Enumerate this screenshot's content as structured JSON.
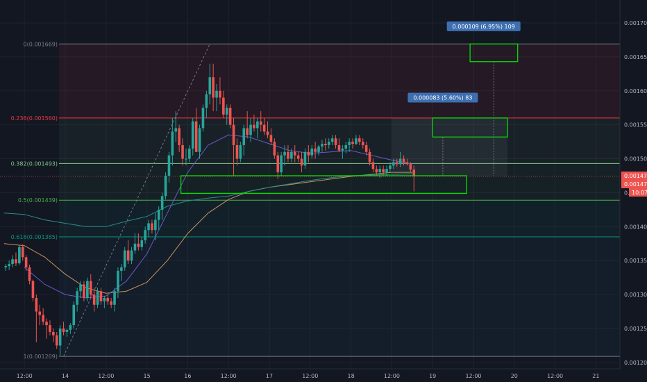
{
  "colors": {
    "background": "#131722",
    "grid": "#1e222d",
    "up": "#26a69a",
    "down": "#ef5350",
    "text": "#b2b5be",
    "ma_orange": "#c8935b",
    "ma_teal": "#2a8c8c",
    "ma_purple": "#6a5acd",
    "box_green": "#00e000",
    "price_tag": "#ef5350",
    "measure_tag": "#3d6fb0"
  },
  "chart_data": {
    "type": "candlestick",
    "title": "",
    "price_axis": {
      "min": 0.00115,
      "max": 0.00172,
      "ticks": [
        "0.001700",
        "0.001650",
        "0.001600",
        "0.001550",
        "0.001500",
        "0.001450",
        "0.001400",
        "0.001350",
        "0.001300",
        "0.001250",
        "0.001200",
        "0.001150"
      ],
      "tick_values": [
        0.0017,
        0.00165,
        0.0016,
        0.00155,
        0.0015,
        0.00145,
        0.0014,
        0.00135,
        0.0013,
        0.00125,
        0.0012,
        0.00115
      ]
    },
    "time_axis": {
      "labels": [
        "12:00",
        "14",
        "12:00",
        "15",
        "16",
        "12:00",
        "17",
        "12:00",
        "18",
        "12:00",
        "19",
        "12:00",
        "20",
        "12:00",
        "21"
      ],
      "hours": [
        -12,
        0,
        12,
        24,
        36,
        48,
        60,
        72,
        84,
        96,
        108,
        120,
        132,
        144,
        156
      ]
    },
    "fib_levels": [
      {
        "label": "0(0.001669)",
        "value": 0.001669,
        "color": "#787b86"
      },
      {
        "label": "0.236(0.001560)",
        "value": 0.00156,
        "color": "#f23645"
      },
      {
        "label": "0.382(0.001493)",
        "value": 0.001493,
        "color": "#81c784"
      },
      {
        "label": "0.5(0.001439)",
        "value": 0.001439,
        "color": "#4caf50"
      },
      {
        "label": "0.618(0.001385)",
        "value": 0.001385,
        "color": "#089981"
      },
      {
        "label": "1(0.001209)",
        "value": 0.001209,
        "color": "#787b86"
      }
    ],
    "current_price": {
      "value": 0.001474,
      "labels": [
        "0.001474",
        "0.001474"
      ],
      "countdown": "10:07"
    },
    "measure_labels": [
      {
        "text": "0.000083 (5.60%) 83",
        "hour": 111,
        "price": 0.00159
      },
      {
        "text": "0.000109 (6.95%) 109",
        "hour": 123,
        "price": 0.001695
      }
    ],
    "boxes": [
      {
        "h1": 34,
        "h2": 118,
        "p1": 0.001475,
        "p2": 0.001449
      },
      {
        "h1": 108,
        "h2": 130,
        "p1": 0.00156,
        "p2": 0.001532
      },
      {
        "h1": 119,
        "h2": 133,
        "p1": 0.001669,
        "p2": 0.001643
      }
    ],
    "candles_ohlc": [
      [
        -17.5,
        0.00134,
        0.001345,
        0.001335,
        0.001342
      ],
      [
        -16.5,
        0.001342,
        0.00135,
        0.001336,
        0.001345
      ],
      [
        -15.5,
        0.001345,
        0.001358,
        0.00134,
        0.001352
      ],
      [
        -14.5,
        0.001352,
        0.001362,
        0.001342,
        0.001346
      ],
      [
        -13.5,
        0.001346,
        0.001372,
        0.001344,
        0.00137
      ],
      [
        -12.5,
        0.00137,
        0.001374,
        0.00135,
        0.001355
      ],
      [
        -11.5,
        0.001355,
        0.001358,
        0.001335,
        0.00134
      ],
      [
        -10.5,
        0.00134,
        0.001344,
        0.001315,
        0.00132
      ],
      [
        -9.5,
        0.00132,
        0.001322,
        0.00129,
        0.001295
      ],
      [
        -8.5,
        0.001295,
        0.0013,
        0.00123,
        0.001275
      ],
      [
        -7.5,
        0.001275,
        0.001285,
        0.001255,
        0.00127
      ],
      [
        -6.5,
        0.00127,
        0.00128,
        0.001255,
        0.00126
      ],
      [
        -5.5,
        0.00126,
        0.001265,
        0.001235,
        0.001255
      ],
      [
        -4.5,
        0.001255,
        0.001262,
        0.00124,
        0.001245
      ],
      [
        -3.5,
        0.001245,
        0.00125,
        0.00123,
        0.00124
      ],
      [
        -2.5,
        0.00124,
        0.001245,
        0.00122,
        0.001225
      ],
      [
        -1.5,
        0.001225,
        0.001255,
        0.00121,
        0.00125
      ],
      [
        -0.5,
        0.00125,
        0.00126,
        0.00124,
        0.001245
      ],
      [
        0.5,
        0.001245,
        0.00125,
        0.001238,
        0.001248
      ],
      [
        1.5,
        0.001248,
        0.001258,
        0.001242,
        0.001255
      ],
      [
        2.5,
        0.001255,
        0.00129,
        0.00125,
        0.001285
      ],
      [
        3.5,
        0.001285,
        0.00131,
        0.001275,
        0.001305
      ],
      [
        4.5,
        0.001305,
        0.00132,
        0.001295,
        0.001315
      ],
      [
        5.5,
        0.001315,
        0.00132,
        0.00129,
        0.001295
      ],
      [
        6.5,
        0.001295,
        0.001325,
        0.00129,
        0.00132
      ],
      [
        7.5,
        0.00132,
        0.00133,
        0.001295,
        0.0013
      ],
      [
        8.5,
        0.0013,
        0.00131,
        0.001275,
        0.001285
      ],
      [
        9.5,
        0.001285,
        0.00131,
        0.00128,
        0.001305
      ],
      [
        10.5,
        0.001305,
        0.00131,
        0.001285,
        0.00129
      ],
      [
        11.5,
        0.00129,
        0.001298,
        0.00128,
        0.001295
      ],
      [
        12.5,
        0.001295,
        0.0013,
        0.001285,
        0.00129
      ],
      [
        13.5,
        0.00129,
        0.001295,
        0.00128,
        0.001285
      ],
      [
        14.5,
        0.001285,
        0.00131,
        0.001275,
        0.001305
      ],
      [
        15.5,
        0.001305,
        0.00134,
        0.001295,
        0.001335
      ],
      [
        16.5,
        0.001335,
        0.001345,
        0.00132,
        0.00134
      ],
      [
        17.5,
        0.00134,
        0.00137,
        0.001335,
        0.001365
      ],
      [
        18.5,
        0.001365,
        0.00138,
        0.001345,
        0.00135
      ],
      [
        19.5,
        0.00135,
        0.00137,
        0.001345,
        0.001365
      ],
      [
        20.5,
        0.001365,
        0.00139,
        0.00136,
        0.001375
      ],
      [
        21.5,
        0.001375,
        0.00139,
        0.001365,
        0.00137
      ],
      [
        22.5,
        0.00137,
        0.001385,
        0.001365,
        0.00138
      ],
      [
        23.5,
        0.00138,
        0.0014,
        0.001375,
        0.001395
      ],
      [
        24.5,
        0.001395,
        0.00141,
        0.001385,
        0.001405
      ],
      [
        25.5,
        0.001405,
        0.00141,
        0.00139,
        0.001395
      ],
      [
        26.5,
        0.001395,
        0.00142,
        0.00138,
        0.00141
      ],
      [
        27.5,
        0.00141,
        0.00143,
        0.001395,
        0.001425
      ],
      [
        28.5,
        0.001425,
        0.00145,
        0.00141,
        0.001445
      ],
      [
        29.5,
        0.001445,
        0.00148,
        0.00144,
        0.001475
      ],
      [
        30.5,
        0.001475,
        0.00151,
        0.001465,
        0.001505
      ],
      [
        31.5,
        0.001505,
        0.00156,
        0.00149,
        0.00154
      ],
      [
        32.5,
        0.00154,
        0.00157,
        0.001525,
        0.001545
      ],
      [
        33.5,
        0.001545,
        0.00155,
        0.00151,
        0.00152
      ],
      [
        34.5,
        0.00152,
        0.00153,
        0.00149,
        0.0015
      ],
      [
        35.5,
        0.0015,
        0.001515,
        0.00149,
        0.0015
      ],
      [
        36.5,
        0.0015,
        0.00152,
        0.001495,
        0.001515
      ],
      [
        37.5,
        0.001515,
        0.00156,
        0.001505,
        0.001555
      ],
      [
        38.5,
        0.001555,
        0.001575,
        0.00154,
        0.00151
      ],
      [
        39.5,
        0.00151,
        0.00155,
        0.0015,
        0.001545
      ],
      [
        40.5,
        0.001545,
        0.00158,
        0.00154,
        0.001575
      ],
      [
        41.5,
        0.001575,
        0.0016,
        0.00156,
        0.001595
      ],
      [
        42.5,
        0.001595,
        0.00164,
        0.00158,
        0.00162
      ],
      [
        43.5,
        0.00162,
        0.00164,
        0.00157,
        0.00159
      ],
      [
        44.5,
        0.00159,
        0.00161,
        0.00157,
        0.0016
      ],
      [
        45.5,
        0.0016,
        0.00162,
        0.00158,
        0.00159
      ],
      [
        46.5,
        0.00159,
        0.0016,
        0.00156,
        0.001565
      ],
      [
        47.5,
        0.001565,
        0.00158,
        0.00155,
        0.001575
      ],
      [
        48.5,
        0.001575,
        0.00158,
        0.001545,
        0.00155
      ],
      [
        49.5,
        0.00155,
        0.00156,
        0.001475,
        0.00152
      ],
      [
        50.5,
        0.00152,
        0.00153,
        0.00149,
        0.0015
      ],
      [
        51.5,
        0.0015,
        0.001525,
        0.001495,
        0.00152
      ],
      [
        52.5,
        0.00152,
        0.00155,
        0.001505,
        0.001545
      ],
      [
        53.5,
        0.001545,
        0.00157,
        0.00153,
        0.001535
      ],
      [
        54.5,
        0.001535,
        0.00156,
        0.001525,
        0.00155
      ],
      [
        55.5,
        0.00155,
        0.001565,
        0.00154,
        0.001545
      ],
      [
        56.5,
        0.001545,
        0.00156,
        0.00153,
        0.001555
      ],
      [
        57.5,
        0.001555,
        0.00157,
        0.00154,
        0.00155
      ],
      [
        58.5,
        0.00155,
        0.00156,
        0.001535,
        0.00154
      ],
      [
        59.5,
        0.00154,
        0.001555,
        0.00153,
        0.001535
      ],
      [
        60.5,
        0.001535,
        0.001545,
        0.00152,
        0.001525
      ],
      [
        61.5,
        0.001525,
        0.00153,
        0.0015,
        0.001505
      ],
      [
        62.5,
        0.001505,
        0.00151,
        0.00147,
        0.00148
      ],
      [
        63.5,
        0.00148,
        0.00151,
        0.001475,
        0.001505
      ],
      [
        64.5,
        0.001505,
        0.00152,
        0.00149,
        0.00151
      ],
      [
        65.5,
        0.00151,
        0.00152,
        0.001495,
        0.0015
      ],
      [
        66.5,
        0.0015,
        0.001515,
        0.001495,
        0.00151
      ],
      [
        67.5,
        0.00151,
        0.00152,
        0.001495,
        0.001505
      ],
      [
        68.5,
        0.001505,
        0.00151,
        0.001495,
        0.0015
      ],
      [
        69.5,
        0.0015,
        0.00151,
        0.00148,
        0.00149
      ],
      [
        70.5,
        0.00149,
        0.001515,
        0.001485,
        0.00151
      ],
      [
        71.5,
        0.00151,
        0.00152,
        0.001495,
        0.001505
      ],
      [
        72.5,
        0.001505,
        0.00152,
        0.0015,
        0.001515
      ],
      [
        73.5,
        0.001515,
        0.001525,
        0.0015,
        0.00151
      ],
      [
        74.5,
        0.00151,
        0.00152,
        0.001505,
        0.001518
      ],
      [
        75.5,
        0.001518,
        0.001528,
        0.00151,
        0.001522
      ],
      [
        76.5,
        0.001522,
        0.00153,
        0.001512,
        0.00152
      ],
      [
        77.5,
        0.00152,
        0.00153,
        0.001515,
        0.001525
      ],
      [
        78.5,
        0.001525,
        0.001535,
        0.00152,
        0.00153
      ],
      [
        79.5,
        0.00153,
        0.001535,
        0.001515,
        0.00152
      ],
      [
        80.5,
        0.00152,
        0.00153,
        0.00151,
        0.001512
      ],
      [
        81.5,
        0.001512,
        0.00152,
        0.0015,
        0.001515
      ],
      [
        82.5,
        0.001515,
        0.001525,
        0.001508,
        0.00152
      ],
      [
        83.5,
        0.00152,
        0.00153,
        0.00151,
        0.001525
      ],
      [
        84.5,
        0.001525,
        0.00153,
        0.001515,
        0.001522
      ],
      [
        85.5,
        0.001522,
        0.001535,
        0.00152,
        0.00153
      ],
      [
        86.5,
        0.00153,
        0.001535,
        0.00152,
        0.001525
      ],
      [
        87.5,
        0.001525,
        0.00153,
        0.001515,
        0.00152
      ],
      [
        88.5,
        0.00152,
        0.001525,
        0.001505,
        0.00151
      ],
      [
        89.5,
        0.00151,
        0.001515,
        0.00149,
        0.001495
      ],
      [
        90.5,
        0.001495,
        0.0015,
        0.00148,
        0.001485
      ],
      [
        91.5,
        0.001485,
        0.00149,
        0.001475,
        0.00148
      ],
      [
        92.5,
        0.00148,
        0.00149,
        0.001472,
        0.001485
      ],
      [
        93.5,
        0.001485,
        0.00149,
        0.001475,
        0.00148
      ],
      [
        94.5,
        0.00148,
        0.00149,
        0.001475,
        0.001485
      ],
      [
        95.5,
        0.001485,
        0.001495,
        0.00148,
        0.00149
      ],
      [
        96.5,
        0.00149,
        0.0015,
        0.001485,
        0.001495
      ],
      [
        97.5,
        0.001495,
        0.0015,
        0.001488,
        0.001492
      ],
      [
        98.5,
        0.001492,
        0.00151,
        0.001488,
        0.0015
      ],
      [
        99.5,
        0.0015,
        0.001505,
        0.00149,
        0.001495
      ],
      [
        100.5,
        0.001495,
        0.0015,
        0.00149,
        0.001492
      ],
      [
        101.5,
        0.001492,
        0.001495,
        0.00148,
        0.001484
      ],
      [
        102.5,
        0.001484,
        0.00149,
        0.001452,
        0.001474
      ]
    ],
    "ma_series": [
      {
        "color": "#c8935b",
        "points": [
          [
            -18,
            0.001375
          ],
          [
            -12,
            0.001372
          ],
          [
            -6,
            0.001355
          ],
          [
            0,
            0.00133
          ],
          [
            6,
            0.00131
          ],
          [
            12,
            0.001302
          ],
          [
            18,
            0.001305
          ],
          [
            24,
            0.001318
          ],
          [
            30,
            0.00135
          ],
          [
            36,
            0.00139
          ],
          [
            42,
            0.00142
          ],
          [
            48,
            0.00144
          ],
          [
            54,
            0.001452
          ],
          [
            60,
            0.001458
          ],
          [
            66,
            0.001462
          ],
          [
            72,
            0.001466
          ],
          [
            78,
            0.00147
          ],
          [
            84,
            0.001474
          ],
          [
            90,
            0.001477
          ],
          [
            96,
            0.00148
          ],
          [
            102,
            0.00148
          ]
        ]
      },
      {
        "color": "#2a8c8c",
        "points": [
          [
            -18,
            0.00142
          ],
          [
            -12,
            0.001418
          ],
          [
            -6,
            0.00141
          ],
          [
            0,
            0.001405
          ],
          [
            6,
            0.0014
          ],
          [
            12,
            0.0014
          ],
          [
            18,
            0.001408
          ],
          [
            24,
            0.001415
          ],
          [
            30,
            0.00143
          ],
          [
            36,
            0.001438
          ],
          [
            42,
            0.001442
          ],
          [
            48,
            0.001445
          ],
          [
            54,
            0.001452
          ],
          [
            60,
            0.001458
          ],
          [
            66,
            0.001463
          ],
          [
            72,
            0.001468
          ],
          [
            78,
            0.001472
          ],
          [
            84,
            0.001475
          ],
          [
            90,
            0.001476
          ],
          [
            96,
            0.001477
          ],
          [
            102,
            0.001478
          ]
        ]
      },
      {
        "color": "#6a5acd",
        "points": [
          [
            -12,
            0.00134
          ],
          [
            -6,
            0.001315
          ],
          [
            0,
            0.0013
          ],
          [
            6,
            0.001295
          ],
          [
            12,
            0.001298
          ],
          [
            18,
            0.00132
          ],
          [
            24,
            0.00136
          ],
          [
            30,
            0.00142
          ],
          [
            36,
            0.00148
          ],
          [
            42,
            0.00152
          ],
          [
            48,
            0.001535
          ],
          [
            54,
            0.001532
          ],
          [
            60,
            0.001522
          ],
          [
            66,
            0.001512
          ],
          [
            72,
            0.001508
          ],
          [
            78,
            0.00151
          ],
          [
            84,
            0.001512
          ],
          [
            90,
            0.001505
          ],
          [
            96,
            0.001498
          ],
          [
            102,
            0.001492
          ]
        ]
      }
    ],
    "diagonal_line": {
      "from": [
        -0.5,
        0.001209
      ],
      "to": [
        42.5,
        0.001669
      ]
    }
  }
}
